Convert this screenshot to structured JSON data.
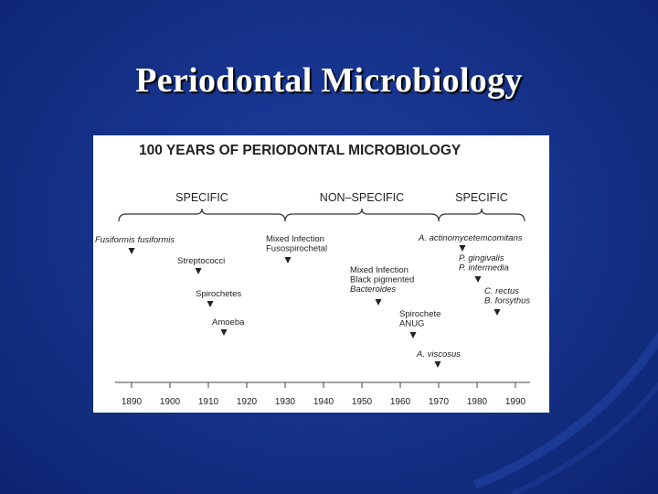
{
  "slide": {
    "title": "Periodontal Microbiology"
  },
  "figure": {
    "heading": "100 YEARS OF PERIODONTAL MICROBIOLOGY",
    "eras": [
      {
        "label": "SPECIFIC",
        "span": [
          1890,
          1930
        ]
      },
      {
        "label": "NON–SPECIFIC",
        "span": [
          1930,
          1970
        ]
      },
      {
        "label": "SPECIFIC",
        "span": [
          1970,
          1990
        ]
      }
    ],
    "events": [
      {
        "year": 1890,
        "lines": [
          "Fusiformis fusiformis"
        ],
        "italic": [
          true
        ]
      },
      {
        "year": 1908,
        "lines": [
          "Streptococci"
        ],
        "italic": [
          false
        ]
      },
      {
        "year": 1910,
        "lines": [
          "Spirochetes"
        ],
        "italic": [
          false
        ]
      },
      {
        "year": 1913,
        "lines": [
          "Amoeba"
        ],
        "italic": [
          false
        ]
      },
      {
        "year": 1930,
        "lines": [
          "Mixed Infection",
          "Fusospirochetal"
        ],
        "italic": [
          false,
          false
        ]
      },
      {
        "year": 1954,
        "lines": [
          "Mixed Infection",
          "Black pigmented",
          "Bacteroides"
        ],
        "italic": [
          false,
          false,
          true
        ]
      },
      {
        "year": 1965,
        "lines": [
          "Spirochete",
          "ANUG"
        ],
        "italic": [
          false,
          false
        ]
      },
      {
        "year": 1969,
        "lines": [
          "A. viscosus"
        ],
        "italic": [
          true
        ]
      },
      {
        "year": 1976,
        "lines": [
          "A. actinomycetemcomitans"
        ],
        "italic": [
          true
        ]
      },
      {
        "year": 1979,
        "lines": [
          "P. gingivalis",
          "P. intermedia"
        ],
        "italic": [
          true,
          true
        ]
      },
      {
        "year": 1984,
        "lines": [
          "C. rectus",
          "B. forsythus"
        ],
        "italic": [
          true,
          true
        ]
      }
    ],
    "axis": {
      "ticks": [
        1890,
        1900,
        1910,
        1920,
        1930,
        1940,
        1950,
        1960,
        1970,
        1980,
        1990
      ],
      "range": [
        1890,
        1990
      ]
    }
  },
  "colors": {
    "background": "#16338c",
    "title": "#ffffff",
    "figure_bg": "#ffffff",
    "ink": "#222222"
  }
}
